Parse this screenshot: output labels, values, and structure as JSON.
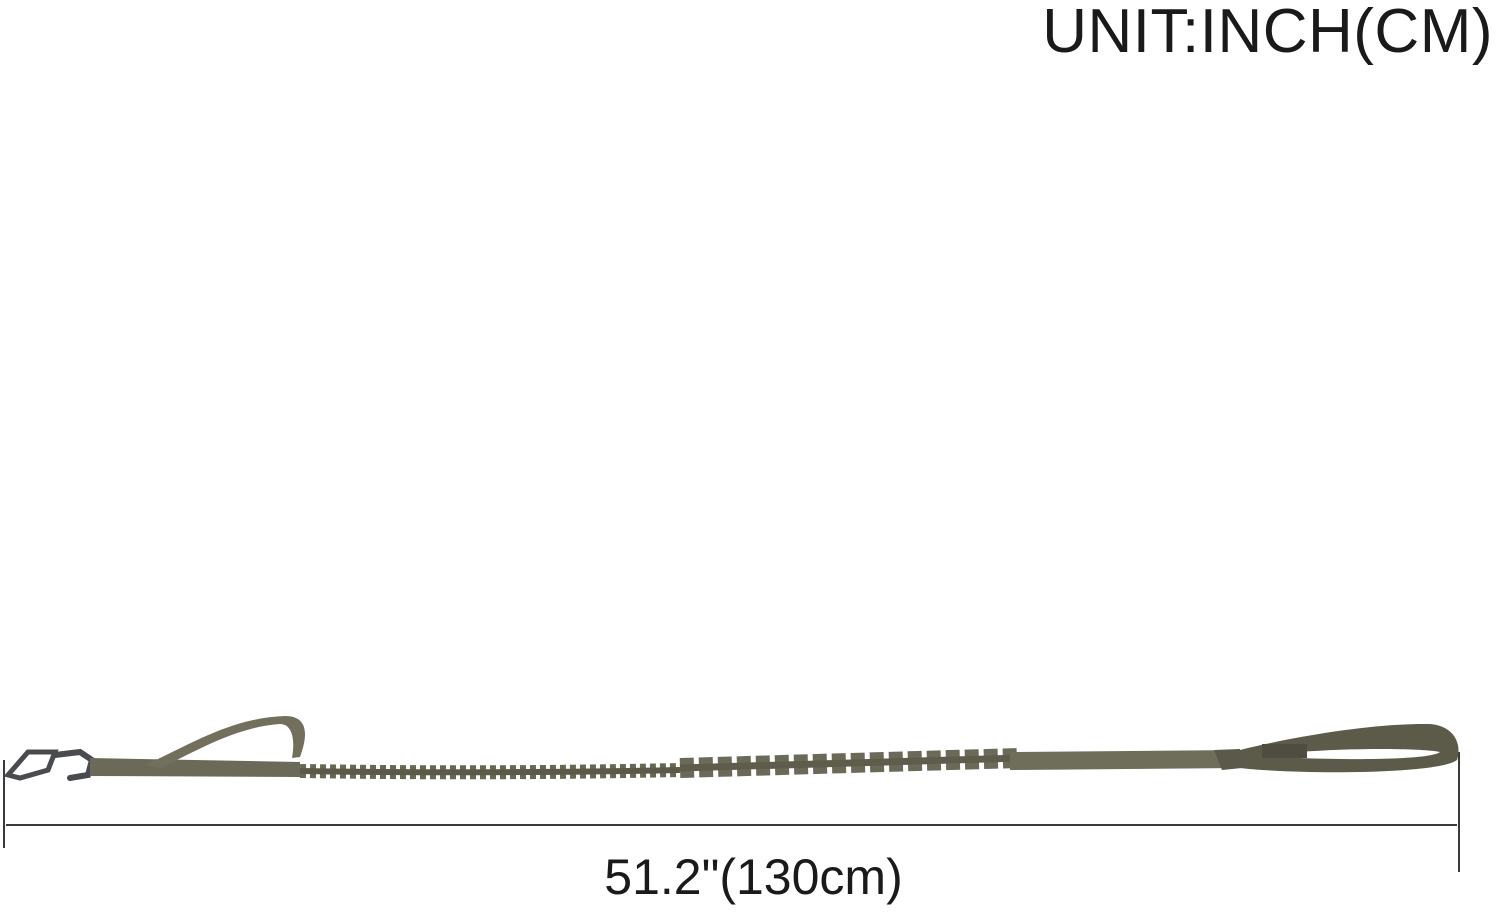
{
  "header": {
    "unit_label": "UNIT:INCH(CM)"
  },
  "dimension": {
    "length_label": "51.2\"(130cm)",
    "inches": 51.2,
    "centimeters": 130
  },
  "product": {
    "name_icon": "bungee-dog-leash",
    "color": "#6b6a58",
    "hardware_color": "#4a4b4f"
  },
  "colors": {
    "text": "#1a1a1a",
    "dimension_line": "#3a3a3a",
    "background": "#ffffff"
  }
}
